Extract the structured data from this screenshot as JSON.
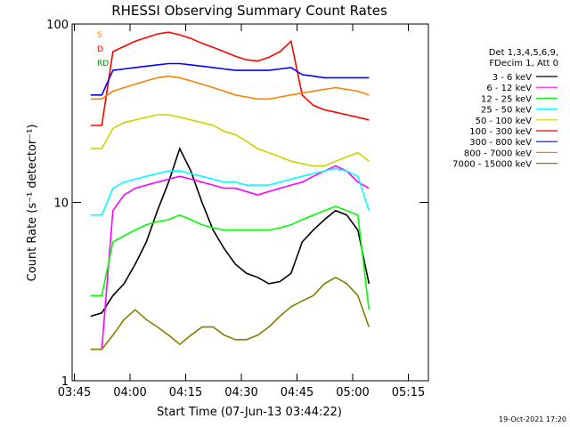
{
  "chart_data": {
    "type": "line",
    "title": "RHESSI Observing Summary Count Rates",
    "xlabel": "Start Time (07-Jun-13 03:44:22)",
    "ylabel": "Count Rate (s⁻¹ detector⁻¹)",
    "x_unit": "minutes after 03:44:22",
    "xlim": [
      0,
      96
    ],
    "ylim": [
      1,
      100
    ],
    "yscale": "log",
    "x_ticks": [
      {
        "x": 0.6,
        "label": "03:45"
      },
      {
        "x": 15.6,
        "label": "04:00"
      },
      {
        "x": 30.6,
        "label": "04:15"
      },
      {
        "x": 45.6,
        "label": "04:30"
      },
      {
        "x": 60.6,
        "label": "04:45"
      },
      {
        "x": 75.6,
        "label": "05:00"
      },
      {
        "x": 90.6,
        "label": "05:15"
      }
    ],
    "y_ticks": [
      {
        "y": 1,
        "label": "1"
      },
      {
        "y": 10,
        "label": "10"
      },
      {
        "y": 100,
        "label": "100"
      }
    ],
    "legend_header": [
      "Det 1,3,4,5,6,9,",
      "FDecim 1, Att 0"
    ],
    "legend_placement": "right",
    "series": [
      {
        "name": "3 - 6 keV",
        "color": "#000000",
        "x": [
          5,
          8,
          11,
          14,
          17,
          20,
          23,
          26,
          29,
          32,
          35,
          38,
          41,
          44,
          47,
          50,
          53,
          56,
          59,
          62,
          65,
          68,
          71,
          74,
          77,
          80
        ],
        "y": [
          2.3,
          2.4,
          3,
          3.5,
          4.5,
          6,
          9,
          13,
          20,
          15,
          10,
          7,
          5.5,
          4.5,
          4,
          3.8,
          3.5,
          3.6,
          4,
          6,
          7,
          8,
          9,
          8.5,
          7,
          3.5
        ]
      },
      {
        "name": "6 - 12 keV",
        "color": "#ff00ff",
        "x": [
          5,
          8,
          11,
          14,
          17,
          20,
          23,
          26,
          29,
          32,
          35,
          38,
          41,
          44,
          47,
          50,
          53,
          56,
          59,
          62,
          65,
          68,
          71,
          74,
          77,
          80
        ],
        "y": [
          1.5,
          1.5,
          9,
          11,
          12,
          12.5,
          13,
          13.5,
          14,
          13.5,
          13,
          12.5,
          12,
          12,
          11.5,
          11,
          11.5,
          12,
          12.5,
          13,
          14,
          15,
          16,
          15,
          13,
          12
        ]
      },
      {
        "name": "12 - 25 keV",
        "color": "#00ff00",
        "x": [
          5,
          8,
          11,
          14,
          17,
          20,
          23,
          26,
          29,
          32,
          35,
          38,
          41,
          44,
          47,
          50,
          53,
          56,
          59,
          62,
          65,
          68,
          71,
          74,
          77,
          80
        ],
        "y": [
          3,
          3,
          6,
          6.5,
          7,
          7.5,
          7.8,
          8,
          8.5,
          8,
          7.5,
          7.2,
          7,
          7,
          7,
          7,
          7,
          7.2,
          7.5,
          8,
          8.5,
          9,
          9.5,
          9,
          8.5,
          2.5
        ]
      },
      {
        "name": "25 - 50 keV",
        "color": "#00ffff",
        "x": [
          5,
          8,
          11,
          14,
          17,
          20,
          23,
          26,
          29,
          32,
          35,
          38,
          41,
          44,
          47,
          50,
          53,
          56,
          59,
          62,
          65,
          68,
          71,
          74,
          77,
          80
        ],
        "y": [
          8.5,
          8.5,
          12,
          13,
          13.5,
          14,
          14.5,
          15,
          15,
          14.5,
          14,
          13.5,
          13,
          13,
          12.5,
          12.5,
          12.5,
          13,
          13.5,
          14,
          14.5,
          15,
          15.5,
          15,
          14,
          9
        ]
      },
      {
        "name": "50 - 100 keV",
        "color": "#d0d000",
        "x": [
          5,
          8,
          11,
          14,
          17,
          20,
          23,
          26,
          29,
          32,
          35,
          38,
          41,
          44,
          47,
          50,
          53,
          56,
          59,
          62,
          65,
          68,
          71,
          74,
          77,
          80
        ],
        "y": [
          20,
          20,
          26,
          28,
          29,
          30,
          31,
          31,
          30,
          29,
          28,
          27,
          25,
          24,
          22,
          20,
          19,
          18,
          17,
          16.5,
          16,
          16,
          17,
          18,
          19,
          17
        ]
      },
      {
        "name": "100 - 300 keV",
        "color": "#ff0000",
        "x": [
          5,
          8,
          11,
          14,
          17,
          20,
          23,
          26,
          29,
          32,
          35,
          38,
          41,
          44,
          47,
          50,
          53,
          56,
          59,
          62,
          65,
          68,
          71,
          74,
          77,
          80
        ],
        "y": [
          27,
          27,
          70,
          75,
          80,
          84,
          88,
          90,
          87,
          83,
          78,
          74,
          70,
          66,
          63,
          62,
          65,
          70,
          80,
          40,
          35,
          33,
          32,
          31,
          30,
          29
        ]
      },
      {
        "name": "300 - 800 keV",
        "color": "#0000ff",
        "x": [
          5,
          8,
          11,
          14,
          17,
          20,
          23,
          26,
          29,
          32,
          35,
          38,
          41,
          44,
          47,
          50,
          53,
          56,
          59,
          62,
          65,
          68,
          71,
          74,
          77,
          80
        ],
        "y": [
          40,
          40,
          55,
          56,
          57,
          58,
          59,
          60,
          60,
          59,
          58,
          57,
          56,
          55,
          55,
          55,
          55,
          56,
          57,
          52,
          51,
          50,
          50,
          50,
          50,
          50
        ]
      },
      {
        "name": "800 - 7000 keV",
        "color": "#ff8000",
        "x": [
          5,
          8,
          11,
          14,
          17,
          20,
          23,
          26,
          29,
          32,
          35,
          38,
          41,
          44,
          47,
          50,
          53,
          56,
          59,
          62,
          65,
          68,
          71,
          74,
          77,
          80
        ],
        "y": [
          38,
          38,
          42,
          44,
          46,
          48,
          50,
          51,
          50,
          48,
          46,
          44,
          42,
          40,
          39,
          38,
          38,
          39,
          40,
          41,
          42,
          43,
          44,
          43,
          42,
          40
        ]
      },
      {
        "name": "7000 - 15000 keV",
        "color": "#808000",
        "x": [
          5,
          8,
          11,
          14,
          17,
          20,
          23,
          26,
          29,
          32,
          35,
          38,
          41,
          44,
          47,
          50,
          53,
          56,
          59,
          62,
          65,
          68,
          71,
          74,
          77,
          80
        ],
        "y": [
          1.5,
          1.5,
          1.8,
          2.2,
          2.5,
          2.2,
          2,
          1.8,
          1.6,
          1.8,
          2,
          2,
          1.8,
          1.7,
          1.7,
          1.8,
          2,
          2.3,
          2.6,
          2.8,
          3,
          3.5,
          3.8,
          3.5,
          3,
          2
        ]
      }
    ],
    "flags": [
      {
        "label": "S",
        "color": "#ff8000"
      },
      {
        "label": "D",
        "color": "#ff0000"
      },
      {
        "label": "RD",
        "color": "#008000"
      }
    ],
    "footer_date": "19-Oct-2021 17:20"
  }
}
